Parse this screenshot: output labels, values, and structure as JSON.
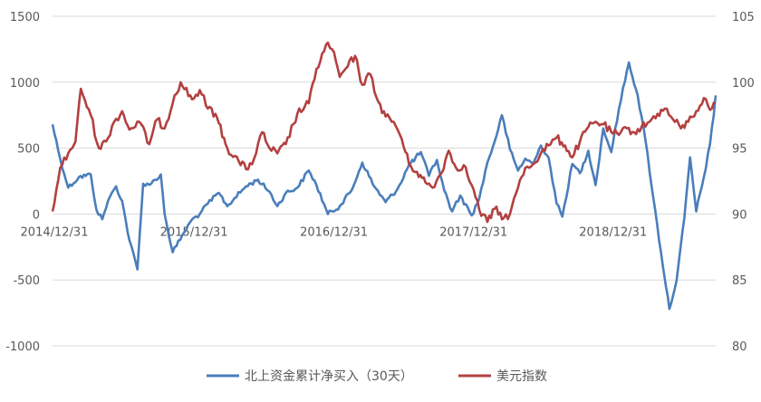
{
  "chart_data": {
    "type": "line",
    "title": "",
    "xlabel": "",
    "ylabel": "",
    "x_tick_labels": [
      "2014/12/31",
      "2015/12/31",
      "2016/12/31",
      "2017/12/31",
      "2018/12/31"
    ],
    "x_tick_dates": [
      "2014-12-31",
      "2015-12-31",
      "2016-12-31",
      "2017-12-31",
      "2018-12-31"
    ],
    "x_range": [
      "2014-12-31",
      "2019-09-30"
    ],
    "ylim_left": [
      -1000,
      1500
    ],
    "ylim_right": [
      80,
      105
    ],
    "yticks_left": [
      "1500",
      "1000",
      "500",
      "0",
      "-500",
      "-1000"
    ],
    "yticks_right": [
      "105",
      "100",
      "95",
      "90",
      "85",
      "80"
    ],
    "grid": "horizontal",
    "legend_position": "bottom",
    "series": [
      {
        "name": "北上资金累计净买入（30天）",
        "axis": "left",
        "color": "#4a7ebb",
        "points": [
          [
            "2014-12-31",
            680
          ],
          [
            "2015-01-20",
            420
          ],
          [
            "2015-02-10",
            200
          ],
          [
            "2015-03-10",
            280
          ],
          [
            "2015-04-10",
            300
          ],
          [
            "2015-04-25",
            30
          ],
          [
            "2015-05-10",
            -40
          ],
          [
            "2015-05-25",
            100
          ],
          [
            "2015-06-15",
            210
          ],
          [
            "2015-07-01",
            100
          ],
          [
            "2015-07-20",
            -200
          ],
          [
            "2015-08-10",
            -420
          ],
          [
            "2015-08-25",
            230
          ],
          [
            "2015-09-15",
            230
          ],
          [
            "2015-10-10",
            300
          ],
          [
            "2015-10-20",
            0
          ],
          [
            "2015-11-10",
            -290
          ],
          [
            "2015-12-10",
            -140
          ],
          [
            "2015-12-31",
            -40
          ],
          [
            "2016-01-20",
            0
          ],
          [
            "2016-02-10",
            80
          ],
          [
            "2016-03-10",
            160
          ],
          [
            "2016-04-01",
            60
          ],
          [
            "2016-04-20",
            120
          ],
          [
            "2016-05-20",
            210
          ],
          [
            "2016-06-20",
            260
          ],
          [
            "2016-07-20",
            170
          ],
          [
            "2016-08-10",
            60
          ],
          [
            "2016-09-01",
            160
          ],
          [
            "2016-10-01",
            200
          ],
          [
            "2016-10-31",
            330
          ],
          [
            "2016-11-20",
            220
          ],
          [
            "2016-12-20",
            0
          ],
          [
            "2017-01-20",
            60
          ],
          [
            "2017-02-20",
            180
          ],
          [
            "2017-03-20",
            390
          ],
          [
            "2017-04-20",
            210
          ],
          [
            "2017-05-20",
            90
          ],
          [
            "2017-06-20",
            190
          ],
          [
            "2017-07-20",
            370
          ],
          [
            "2017-08-20",
            470
          ],
          [
            "2017-09-10",
            290
          ],
          [
            "2017-10-01",
            410
          ],
          [
            "2017-10-20",
            180
          ],
          [
            "2017-11-10",
            20
          ],
          [
            "2017-12-01",
            140
          ],
          [
            "2017-12-31",
            -10
          ],
          [
            "2018-01-20",
            120
          ],
          [
            "2018-02-10",
            390
          ],
          [
            "2018-03-01",
            550
          ],
          [
            "2018-03-20",
            750
          ],
          [
            "2018-04-10",
            490
          ],
          [
            "2018-05-01",
            330
          ],
          [
            "2018-05-20",
            420
          ],
          [
            "2018-06-10",
            380
          ],
          [
            "2018-06-30",
            520
          ],
          [
            "2018-07-20",
            430
          ],
          [
            "2018-08-10",
            80
          ],
          [
            "2018-08-25",
            -20
          ],
          [
            "2018-09-20",
            380
          ],
          [
            "2018-10-10",
            310
          ],
          [
            "2018-11-01",
            480
          ],
          [
            "2018-11-20",
            220
          ],
          [
            "2018-12-10",
            650
          ],
          [
            "2018-12-31",
            470
          ],
          [
            "2019-01-20",
            800
          ],
          [
            "2019-02-15",
            1150
          ],
          [
            "2019-03-10",
            900
          ],
          [
            "2019-03-31",
            550
          ],
          [
            "2019-04-20",
            120
          ],
          [
            "2019-05-10",
            -290
          ],
          [
            "2019-06-01",
            -720
          ],
          [
            "2019-06-20",
            -500
          ],
          [
            "2019-07-10",
            -30
          ],
          [
            "2019-07-25",
            430
          ],
          [
            "2019-08-10",
            20
          ],
          [
            "2019-08-30",
            280
          ],
          [
            "2019-09-15",
            530
          ],
          [
            "2019-09-25",
            750
          ],
          [
            "2019-09-30",
            900
          ]
        ]
      },
      {
        "name": "美元指数",
        "axis": "right",
        "color": "#b34040",
        "points": [
          [
            "2014-12-31",
            90.2
          ],
          [
            "2015-01-20",
            93.5
          ],
          [
            "2015-02-10",
            94.6
          ],
          [
            "2015-03-01",
            95.5
          ],
          [
            "2015-03-15",
            99.5
          ],
          [
            "2015-04-10",
            97.5
          ],
          [
            "2015-05-01",
            95.0
          ],
          [
            "2015-05-20",
            95.5
          ],
          [
            "2015-06-10",
            97.0
          ],
          [
            "2015-07-01",
            97.8
          ],
          [
            "2015-07-20",
            96.4
          ],
          [
            "2015-08-15",
            97.0
          ],
          [
            "2015-09-10",
            95.3
          ],
          [
            "2015-10-01",
            97.2
          ],
          [
            "2015-10-20",
            96.5
          ],
          [
            "2015-11-15",
            99.0
          ],
          [
            "2015-12-01",
            100.0
          ],
          [
            "2015-12-31",
            98.7
          ],
          [
            "2016-01-20",
            99.4
          ],
          [
            "2016-02-10",
            98.0
          ],
          [
            "2016-03-01",
            97.6
          ],
          [
            "2016-04-01",
            95.0
          ],
          [
            "2016-05-01",
            94.0
          ],
          [
            "2016-05-20",
            93.4
          ],
          [
            "2016-06-10",
            94.2
          ],
          [
            "2016-07-01",
            96.2
          ],
          [
            "2016-07-20",
            95.0
          ],
          [
            "2016-08-10",
            94.6
          ],
          [
            "2016-09-01",
            95.3
          ],
          [
            "2016-10-01",
            97.6
          ],
          [
            "2016-10-31",
            98.4
          ],
          [
            "2016-11-20",
            101.0
          ],
          [
            "2016-12-20",
            103.0
          ],
          [
            "2016-12-31",
            102.5
          ],
          [
            "2017-01-20",
            100.4
          ],
          [
            "2017-02-10",
            101.2
          ],
          [
            "2017-03-01",
            102.0
          ],
          [
            "2017-03-20",
            99.8
          ],
          [
            "2017-04-10",
            100.6
          ],
          [
            "2017-05-01",
            98.5
          ],
          [
            "2017-05-20",
            97.4
          ],
          [
            "2017-06-10",
            97.0
          ],
          [
            "2017-07-01",
            95.7
          ],
          [
            "2017-07-20",
            93.8
          ],
          [
            "2017-08-10",
            93.2
          ],
          [
            "2017-09-01",
            92.4
          ],
          [
            "2017-09-20",
            92.0
          ],
          [
            "2017-10-10",
            93.0
          ],
          [
            "2017-11-01",
            94.8
          ],
          [
            "2017-11-20",
            93.5
          ],
          [
            "2017-12-10",
            93.7
          ],
          [
            "2017-12-31",
            92.2
          ],
          [
            "2018-01-20",
            90.3
          ],
          [
            "2018-02-10",
            89.4
          ],
          [
            "2018-03-01",
            90.4
          ],
          [
            "2018-03-25",
            89.7
          ],
          [
            "2018-04-10",
            90.0
          ],
          [
            "2018-05-01",
            92.0
          ],
          [
            "2018-05-20",
            93.5
          ],
          [
            "2018-06-10",
            93.8
          ],
          [
            "2018-07-01",
            94.7
          ],
          [
            "2018-07-20",
            95.2
          ],
          [
            "2018-08-10",
            95.8
          ],
          [
            "2018-09-01",
            95.2
          ],
          [
            "2018-09-20",
            94.3
          ],
          [
            "2018-10-10",
            95.5
          ],
          [
            "2018-11-01",
            96.6
          ],
          [
            "2018-11-20",
            97.0
          ],
          [
            "2018-12-10",
            96.8
          ],
          [
            "2018-12-31",
            96.2
          ],
          [
            "2019-01-20",
            96.0
          ],
          [
            "2019-02-10",
            96.5
          ],
          [
            "2019-03-01",
            96.2
          ],
          [
            "2019-03-20",
            96.6
          ],
          [
            "2019-04-10",
            97.0
          ],
          [
            "2019-05-01",
            97.6
          ],
          [
            "2019-05-20",
            98.0
          ],
          [
            "2019-06-10",
            97.2
          ],
          [
            "2019-07-01",
            96.5
          ],
          [
            "2019-07-20",
            97.0
          ],
          [
            "2019-08-10",
            97.8
          ],
          [
            "2019-08-30",
            98.8
          ],
          [
            "2019-09-10",
            98.2
          ],
          [
            "2019-09-20",
            98.0
          ],
          [
            "2019-09-30",
            98.4
          ]
        ]
      }
    ]
  }
}
